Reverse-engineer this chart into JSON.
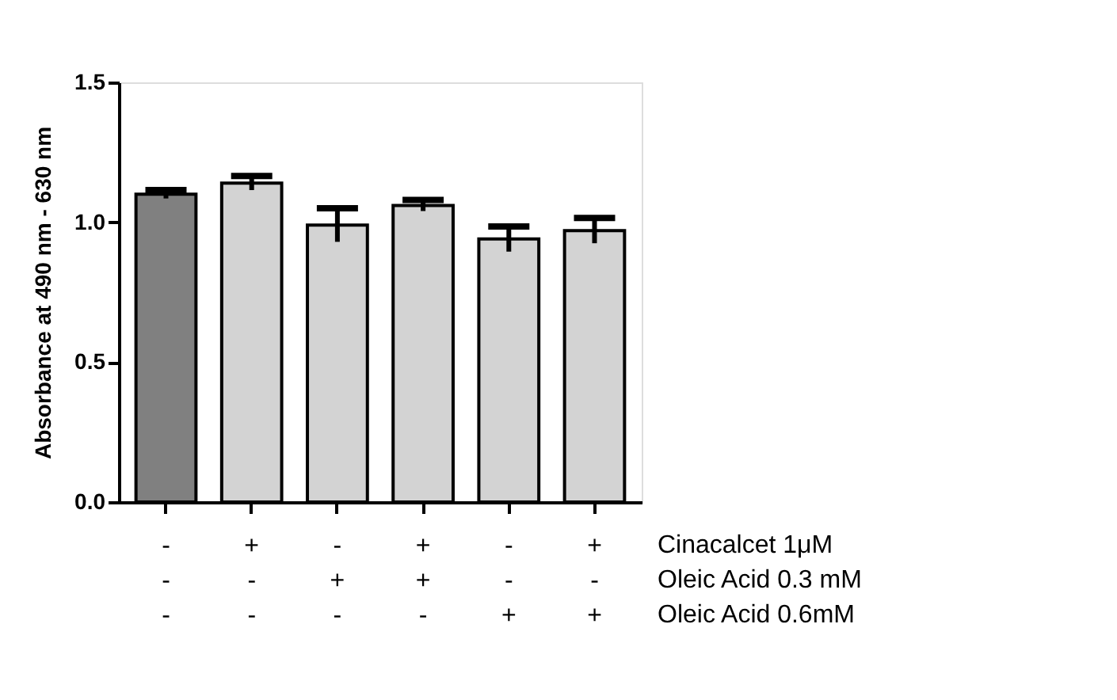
{
  "chart_data": {
    "type": "bar",
    "ylabel": "Absorbance at 490 nm - 630 nm",
    "categories": [
      "-\n-\n-",
      "+\n-\n-",
      "-\n+\n-",
      "+\n+\n-",
      "-\n-\n+",
      "+\n-\n+"
    ],
    "values": [
      1.1,
      1.14,
      0.99,
      1.06,
      0.94,
      0.97
    ],
    "errors": [
      0.015,
      0.025,
      0.06,
      0.02,
      0.045,
      0.045
    ],
    "colors": [
      "#808080",
      "#d3d3d3",
      "#d3d3d3",
      "#d3d3d3",
      "#d3d3d3",
      "#d3d3d3"
    ],
    "ylim": [
      0,
      1.5
    ],
    "yticks": [
      {
        "value": 0,
        "label": "0.0"
      },
      {
        "value": 0.5,
        "label": "0.5"
      },
      {
        "value": 1,
        "label": "1.0"
      },
      {
        "value": 1.5,
        "label": "1.5"
      }
    ],
    "annotations": [
      "Cinacalcet 1μM",
      "Oleic Acid 0.3 mM",
      "Oleic Acid 0.6mM"
    ],
    "grid": false
  }
}
